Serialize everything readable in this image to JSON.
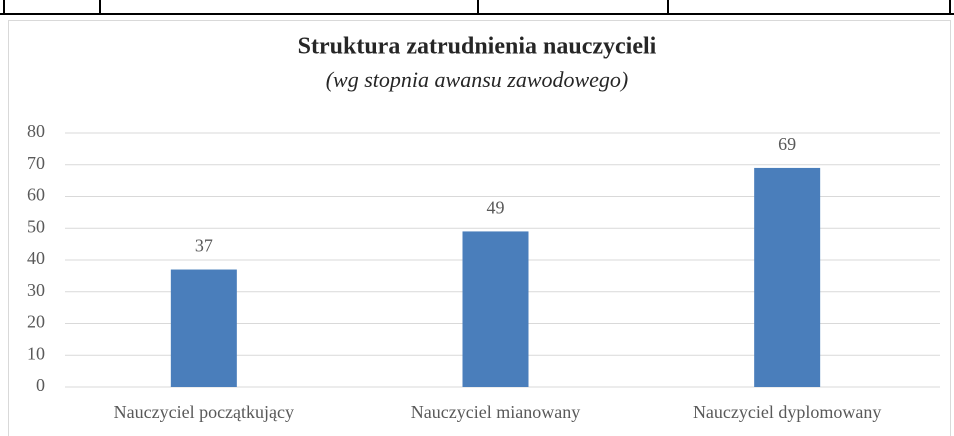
{
  "chart_data": {
    "type": "bar",
    "title": "Struktura zatrudnienia nauczycieli",
    "subtitle": "(wg stopnia awansu zawodowego)",
    "categories": [
      "Nauczyciel początkujący",
      "Nauczyciel mianowany",
      "Nauczyciel dyplomowany"
    ],
    "values": [
      37,
      49,
      69
    ],
    "color": "#4a7ebb",
    "ylim": [
      0,
      80
    ],
    "yticks": [
      0,
      10,
      20,
      30,
      40,
      50,
      60,
      70,
      80
    ],
    "grid": true
  }
}
